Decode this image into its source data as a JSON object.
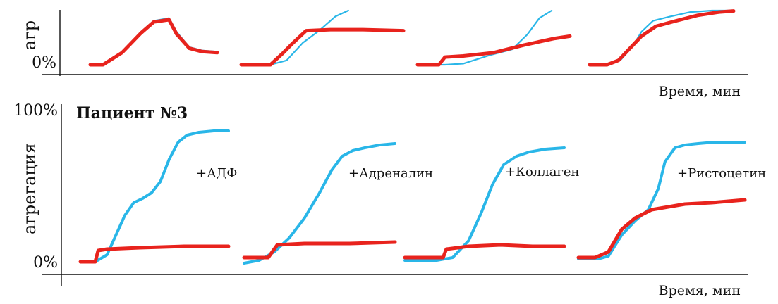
{
  "colors": {
    "blue": "#29b6e8",
    "red": "#e8231d",
    "axis": "#111111",
    "text": "#111111"
  },
  "chart_data": [
    {
      "type": "line",
      "panel": "top",
      "title": "",
      "ylabel": "агр",
      "xlabel": "Время, мин",
      "y_tick_labels": [
        "0%"
      ],
      "ylim": [
        0,
        100
      ],
      "grid": false,
      "legend": "none",
      "subplots": [
        {
          "label": "",
          "series": [
            {
              "name": "",
              "color": "blue",
              "x": [
                0,
                10,
                25,
                40,
                50,
                62,
                68,
                78,
                88,
                100
              ],
              "y": [
                0,
                0,
                22,
                60,
                80,
                85,
                60,
                32,
                26,
                24
              ]
            },
            {
              "name": "",
              "color": "red",
              "x": [
                0,
                10,
                25,
                40,
                50,
                62,
                68,
                78,
                88,
                100
              ],
              "y": [
                0,
                0,
                22,
                58,
                78,
                82,
                56,
                30,
                24,
                22
              ]
            }
          ]
        },
        {
          "label": "",
          "series": [
            {
              "name": "",
              "color": "blue",
              "x": [
                0,
                18,
                28,
                38,
                48,
                58,
                66
              ],
              "y": [
                0,
                0,
                8,
                40,
                62,
                88,
                104
              ]
            },
            {
              "name": "",
              "color": "red",
              "x": [
                0,
                18,
                26,
                32,
                40,
                55,
                75,
                100
              ],
              "y": [
                0,
                0,
                22,
                40,
                62,
                64,
                64,
                62
              ]
            }
          ]
        },
        {
          "label": "",
          "series": [
            {
              "name": "",
              "color": "blue",
              "x": [
                0,
                18,
                30,
                48,
                62,
                72,
                80,
                88
              ],
              "y": [
                0,
                0,
                2,
                18,
                28,
                55,
                85,
                115
              ]
            },
            {
              "name": "",
              "color": "red",
              "x": [
                0,
                14,
                18,
                30,
                50,
                70,
                90,
                100
              ],
              "y": [
                0,
                0,
                14,
                16,
                22,
                36,
                48,
                52
              ]
            }
          ]
        },
        {
          "label": "",
          "series": [
            {
              "name": "",
              "color": "blue",
              "x": [
                0,
                12,
                22,
                30,
                36,
                44,
                56,
                70,
                85,
                100
              ],
              "y": [
                0,
                0,
                10,
                34,
                60,
                80,
                88,
                96,
                100,
                102
              ]
            },
            {
              "name": "",
              "color": "red",
              "x": [
                0,
                12,
                20,
                28,
                36,
                46,
                60,
                75,
                90,
                100
              ],
              "y": [
                0,
                0,
                8,
                30,
                52,
                70,
                80,
                90,
                96,
                98
              ]
            }
          ]
        }
      ]
    },
    {
      "type": "line",
      "panel": "bottom",
      "title": "Пациент №3",
      "ylabel": "агрегация",
      "xlabel": "Время, мин",
      "y_tick_labels": [
        "100%",
        "0%"
      ],
      "ylim": [
        0,
        100
      ],
      "grid": false,
      "legend": "none",
      "subplots": [
        {
          "label": "+АДФ",
          "series": [
            {
              "name": "",
              "color": "blue",
              "x": [
                0,
                10,
                18,
                24,
                30,
                36,
                42,
                48,
                54,
                60,
                66,
                72,
                80,
                90,
                100
              ],
              "y": [
                3,
                3,
                8,
                22,
                36,
                45,
                48,
                52,
                60,
                76,
                88,
                93,
                95,
                96,
                96
              ]
            },
            {
              "name": "",
              "color": "red",
              "x": [
                0,
                10,
                12,
                18,
                40,
                70,
                100
              ],
              "y": [
                3,
                3,
                11,
                12,
                13,
                14,
                14
              ]
            }
          ]
        },
        {
          "label": "+Адреналин",
          "series": [
            {
              "name": "",
              "color": "blue",
              "x": [
                0,
                10,
                20,
                30,
                40,
                50,
                58,
                65,
                72,
                80,
                90,
                100
              ],
              "y": [
                2,
                4,
                10,
                20,
                34,
                52,
                68,
                78,
                82,
                84,
                86,
                87
              ]
            },
            {
              "name": "",
              "color": "red",
              "x": [
                0,
                8,
                16,
                22,
                40,
                70,
                100
              ],
              "y": [
                6,
                6,
                6,
                15,
                16,
                16,
                17
              ]
            }
          ]
        },
        {
          "label": "+Коллаген",
          "series": [
            {
              "name": "",
              "color": "blue",
              "x": [
                0,
                20,
                30,
                40,
                48,
                55,
                62,
                70,
                78,
                88,
                100
              ],
              "y": [
                4,
                4,
                6,
                18,
                38,
                58,
                72,
                78,
                81,
                83,
                84
              ]
            },
            {
              "name": "",
              "color": "red",
              "x": [
                0,
                10,
                24,
                26,
                40,
                60,
                80,
                100
              ],
              "y": [
                6,
                6,
                6,
                12,
                14,
                15,
                14,
                14
              ]
            }
          ]
        },
        {
          "label": "+Ристоцетин",
          "series": [
            {
              "name": "",
              "color": "blue",
              "x": [
                0,
                12,
                18,
                26,
                34,
                42,
                48,
                52,
                58,
                64,
                72,
                82,
                92,
                100
              ],
              "y": [
                5,
                5,
                7,
                22,
                32,
                40,
                55,
                74,
                84,
                86,
                87,
                88,
                88,
                88
              ]
            },
            {
              "name": "",
              "color": "red",
              "x": [
                0,
                10,
                18,
                26,
                34,
                44,
                54,
                64,
                80,
                100
              ],
              "y": [
                6,
                6,
                10,
                26,
                34,
                40,
                42,
                44,
                45,
                47
              ]
            }
          ]
        }
      ]
    }
  ]
}
